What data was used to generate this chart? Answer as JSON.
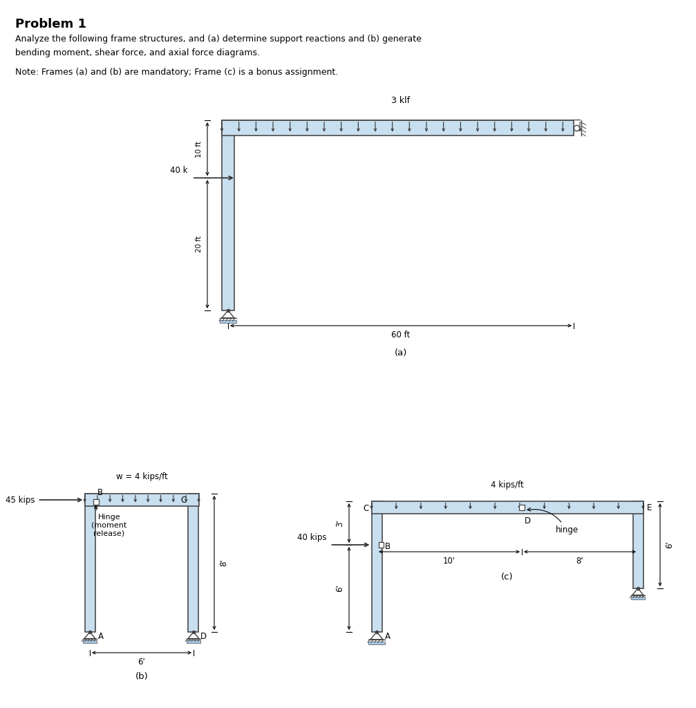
{
  "title": "Problem 1",
  "subtitle_line1": "Analyze the following frame structures, and (a) determine support reactions and (b) generate",
  "subtitle_line2": "bending moment, shear force, and axial force diagrams.",
  "note": "Note: Frames (a) and (b) are mandatory; Frame (c) is a bonus assignment.",
  "bg_color": "#ffffff",
  "text_color": "#000000",
  "beam_fill": "#c8dff0",
  "beam_edge": "#4a4a4a",
  "col_fill": "#c8dff0",
  "col_edge": "#4a4a4a",
  "load_color": "#333333",
  "dim_color": "#000000"
}
